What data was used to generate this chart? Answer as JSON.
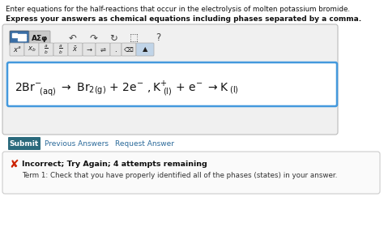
{
  "title_line1": "Enter equations for the half-reactions that occur in the electrolysis of molten potassium bromide.",
  "title_line2": "Express your answers as chemical equations including phases separated by a comma.",
  "submit_label": "Submit",
  "submit_color": "#2b6a7c",
  "prev_answers": "Previous Answers",
  "req_answer": "Request Answer",
  "link_color": "#2b6a9a",
  "error_bold": "Incorrect; Try Again; 4 attempts remaining",
  "error_detail": "Term 1: Check that you have properly identified all of the phases (states) in your answer.",
  "toolbar_bg": "#e8e8e8",
  "input_box_bg": "#ffffff",
  "input_border": "#4499dd",
  "outer_box_bg": "#f0f0f0",
  "outer_box_border": "#bbbbbb",
  "error_box_bg": "#fafafa",
  "error_box_border": "#cccccc",
  "background_color": "#ffffff",
  "blue_btn_color": "#3a6ea5",
  "gray_btn_color": "#c8c8c8"
}
